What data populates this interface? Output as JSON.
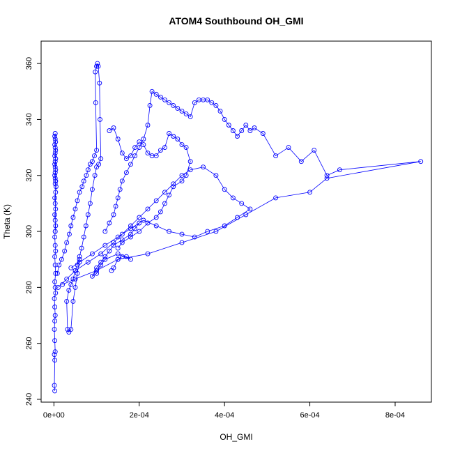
{
  "chart_data": {
    "type": "line",
    "title": "ATOM4 Southbound OH_GMI",
    "xlabel": "OH_GMI",
    "ylabel": "Theta (K)",
    "xlim": [
      -3e-05,
      0.000885
    ],
    "ylim": [
      239,
      368
    ],
    "x_ticks": [
      0,
      0.0002,
      0.0004,
      0.0006,
      0.0008
    ],
    "x_tick_labels": [
      "0e+00",
      "2e-04",
      "4e-04",
      "6e-04",
      "8e-04"
    ],
    "y_ticks": [
      240,
      260,
      280,
      300,
      320,
      340,
      360
    ],
    "y_tick_labels": [
      "240",
      "260",
      "280",
      "300",
      "320",
      "340",
      "360"
    ],
    "grid": false,
    "marker": "open-circle",
    "series_color": "#0000ff",
    "series": [
      {
        "x": [
          2e-06,
          1e-06,
          2e-06,
          1e-06,
          3e-06,
          2e-06,
          1e-06,
          2e-06,
          3e-06,
          2e-06,
          1e-06,
          4e-06,
          3e-06,
          2e-06,
          4e-06,
          3e-06,
          2e-06,
          4e-06,
          3e-06,
          2e-06,
          3e-06,
          4e-06,
          3e-06,
          2e-06,
          4e-06,
          3e-06,
          2e-06,
          4e-06,
          5e-06,
          3e-06,
          4e-06,
          3e-06,
          2e-06,
          3e-06,
          4e-06,
          3e-06,
          2e-06,
          3e-06,
          4e-06,
          2e-06,
          3e-06,
          4e-06,
          3e-06,
          2e-06,
          4e-06,
          3e-06,
          2e-06,
          3e-06,
          4e-06,
          3e-06
        ],
        "y": [
          243,
          245,
          254,
          256,
          257,
          261,
          265,
          268,
          270,
          273,
          276,
          278,
          280,
          282,
          285,
          288,
          291,
          293,
          295,
          298,
          300,
          302,
          304,
          306,
          308,
          310,
          312,
          314,
          316,
          317,
          318,
          319,
          320,
          321,
          322,
          323,
          324,
          325,
          326,
          327,
          328,
          329,
          330,
          331,
          332,
          333,
          334,
          335,
          318,
          300
        ]
      },
      {
        "x": [
          8e-06,
          1.2e-05,
          1.8e-05,
          2.5e-05,
          3e-05,
          3.6e-05,
          4e-05,
          4.5e-05,
          5e-05,
          5.5e-05,
          6e-05,
          6.6e-05,
          7e-05,
          7.6e-05,
          8e-05,
          8.5e-05,
          9e-05,
          9.5e-05,
          0.0001,
          9.8e-05,
          9.7e-05,
          0.0001,
          0.000102,
          0.0001,
          0.000104,
          0.000107,
          0.000108,
          0.00011,
          0.000105,
          0.0001,
          9.6e-05,
          9e-05,
          8.5e-05,
          8e-05,
          7.5e-05,
          7e-05,
          6.5e-05,
          6e-05,
          5.5e-05,
          5e-05,
          4.5e-05,
          4e-05,
          3.5e-05,
          3e-05,
          3.2e-05,
          3.5e-05,
          4e-05,
          4.5e-05,
          5e-05,
          5.5e-05,
          6e-05
        ],
        "y": [
          285,
          288,
          290,
          293,
          296,
          299,
          302,
          305,
          308,
          311,
          314,
          316,
          318,
          320,
          322,
          324,
          325,
          327,
          329,
          346,
          357,
          359,
          360,
          359,
          359,
          353,
          340,
          326,
          324,
          323,
          320,
          315,
          310,
          306,
          302,
          298,
          294,
          291,
          288,
          286,
          283,
          281,
          279,
          275,
          265,
          264,
          265,
          275,
          280,
          285,
          290
        ]
      },
      {
        "x": [
          0.00012,
          0.00013,
          0.00014,
          0.000145,
          0.00015,
          0.000155,
          0.00016,
          0.00017,
          0.00018,
          0.00019,
          0.0002,
          0.00021,
          0.00022,
          0.000225,
          0.00023,
          0.00024,
          0.00025,
          0.00026,
          0.00027,
          0.00028,
          0.00029,
          0.0003,
          0.00031,
          0.00032,
          0.00033,
          0.00034,
          0.00035,
          0.00036,
          0.00037,
          0.00038,
          0.00039,
          0.0004,
          0.00041,
          0.00042,
          0.00043,
          0.00044,
          0.00045,
          0.00046,
          0.00047,
          0.00049,
          0.00052,
          0.00055,
          0.00058,
          0.00061,
          0.00064,
          0.00067,
          0.00086,
          0.00064,
          0.0006,
          0.00052,
          0.00045,
          0.00038,
          0.0003,
          0.00022,
          0.00015,
          0.0001,
          5e-05,
          2e-05
        ],
        "y": [
          300,
          303,
          306,
          309,
          312,
          315,
          318,
          321,
          324,
          327,
          330,
          333,
          338,
          345,
          350,
          349,
          348,
          347,
          346,
          345,
          344,
          343,
          342,
          341,
          346,
          347,
          347,
          347,
          346,
          345,
          343,
          340,
          338,
          336,
          334,
          336,
          338,
          336,
          337,
          335,
          327,
          330,
          325,
          329,
          320,
          322,
          325,
          319,
          314,
          312,
          306,
          300,
          296,
          292,
          290,
          286,
          283,
          281
        ]
      },
      {
        "x": [
          1e-05,
          3e-05,
          5e-05,
          8e-05,
          0.00011,
          0.00014,
          0.00016,
          0.00018,
          0.0002,
          0.00022,
          0.00024,
          0.00026,
          0.00028,
          0.0003,
          0.00032,
          0.00035,
          0.00038,
          0.0004,
          0.00042,
          0.00044,
          0.00046,
          0.00043,
          0.0004,
          0.00036,
          0.00033,
          0.0003,
          0.00027,
          0.00024,
          0.00021,
          0.00018,
          0.00015,
          0.00012,
          9e-05,
          6e-05,
          4e-05
        ],
        "y": [
          280,
          283,
          286,
          289,
          292,
          296,
          299,
          302,
          305,
          308,
          311,
          314,
          317,
          320,
          322,
          323,
          320,
          315,
          312,
          310,
          308,
          305,
          302,
          300,
          298,
          299,
          300,
          302,
          304,
          301,
          298,
          295,
          292,
          289,
          287
        ]
      },
      {
        "x": [
          0.00013,
          0.00014,
          0.00015,
          0.00016,
          0.00017,
          0.00018,
          0.00019,
          0.0002,
          0.00021,
          0.00022,
          0.00023,
          0.00024,
          0.00025,
          0.00026,
          0.00027,
          0.00028,
          0.00029,
          0.0003,
          0.00031,
          0.00032,
          0.00031,
          0.0003,
          0.00028,
          0.00027,
          0.00026,
          0.00025,
          0.00024,
          0.00022,
          0.0002,
          0.00018,
          0.00016,
          0.00015
        ],
        "y": [
          336,
          337,
          333,
          328,
          326,
          327,
          330,
          332,
          331,
          328,
          327,
          327,
          329,
          330,
          335,
          334,
          333,
          331,
          330,
          325,
          320,
          318,
          316,
          313,
          310,
          307,
          305,
          303,
          300,
          298,
          296,
          294
        ]
      },
      {
        "x": [
          0.000135,
          0.00014,
          0.00015,
          0.00016,
          0.00017,
          0.00018,
          0.00015,
          0.00012,
          0.00011,
          0.0001,
          9e-05,
          0.0001,
          0.00011,
          0.00012,
          0.00013,
          0.00014,
          0.00016,
          0.00018,
          0.00019,
          0.0002
        ],
        "y": [
          286,
          287,
          290,
          291,
          291,
          290,
          292,
          290,
          288,
          285,
          284,
          287,
          289,
          291,
          293,
          295,
          297,
          299,
          301,
          303
        ]
      }
    ]
  }
}
